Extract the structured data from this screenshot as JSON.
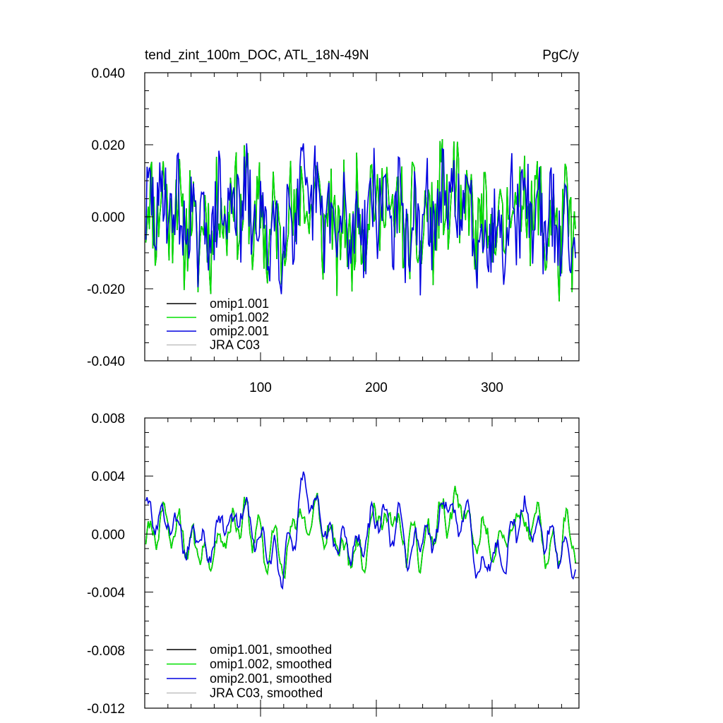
{
  "header": {
    "title": "tend_zint_100m_DOC, ATL_18N-49N",
    "units": "PgC/y"
  },
  "colors": {
    "omip1_001": "#000000",
    "omip1_002": "#00e000",
    "omip2_001": "#0000e0",
    "jra_c03": "#c0c0c0"
  },
  "chart_data": [
    {
      "type": "line",
      "title": "tend_zint_100m_DOC, ATL_18N-49N",
      "units": "PgC/y",
      "xlim": [
        0,
        375
      ],
      "ylim": [
        -0.04,
        0.04
      ],
      "xticks": [
        100,
        200,
        300
      ],
      "xtick_labels": [
        "100",
        "200",
        "300"
      ],
      "yticks": [
        -0.04,
        -0.02,
        0.0,
        0.02,
        0.04
      ],
      "ytick_labels": [
        "-0.040",
        "-0.020",
        "0.000",
        "0.020",
        "0.040"
      ],
      "legend_placement": "bottom-left",
      "legend": [
        "omip1.001",
        "omip1.002",
        "omip2.001",
        "JRA C03"
      ],
      "series": [
        {
          "name": "omip1.001",
          "color": "#000000",
          "n": 372,
          "description": "monthly values, nearly identical to omip1.002",
          "gen": {
            "amp": 0.0115,
            "mean": 0.0,
            "seed": 11,
            "smooth": 0
          }
        },
        {
          "name": "omip1.002",
          "color": "#00e000",
          "n": 372,
          "gen": {
            "amp": 0.0115,
            "mean": 0.0,
            "seed": 11,
            "smooth": 0
          }
        },
        {
          "name": "omip2.001",
          "color": "#0000e0",
          "n": 372,
          "gen": {
            "amp": 0.0105,
            "mean": 0.0,
            "seed": 29,
            "smooth": 0
          }
        },
        {
          "name": "JRA C03",
          "color": "#c0c0c0",
          "n": 0
        }
      ]
    },
    {
      "type": "line",
      "xlim": [
        0,
        375
      ],
      "ylim": [
        -0.012,
        0.008
      ],
      "xticks": [
        100,
        200,
        300
      ],
      "xtick_labels": [],
      "yticks": [
        -0.012,
        -0.008,
        -0.004,
        0.0,
        0.004,
        0.008
      ],
      "ytick_labels": [
        "-0.012",
        "-0.008",
        "-0.004",
        "0.000",
        "0.004",
        "0.008"
      ],
      "legend_placement": "bottom-left",
      "legend": [
        "omip1.001, smoothed",
        "omip1.002, smoothed",
        "omip2.001, smoothed",
        "JRA C03, smoothed"
      ],
      "series": [
        {
          "name": "omip1.001, smoothed",
          "color": "#000000",
          "n": 372,
          "gen": {
            "amp": 0.0032,
            "mean": 0.0,
            "seed": 11,
            "smooth": 1
          }
        },
        {
          "name": "omip1.002, smoothed",
          "color": "#00e000",
          "n": 372,
          "gen": {
            "amp": 0.0032,
            "mean": 0.0,
            "seed": 11,
            "smooth": 1
          }
        },
        {
          "name": "omip2.001, smoothed",
          "color": "#0000e0",
          "n": 372,
          "gen": {
            "amp": 0.003,
            "mean": 0.0,
            "seed": 29,
            "smooth": 1
          }
        },
        {
          "name": "JRA C03, smoothed",
          "color": "#c0c0c0",
          "n": 0
        }
      ]
    }
  ]
}
